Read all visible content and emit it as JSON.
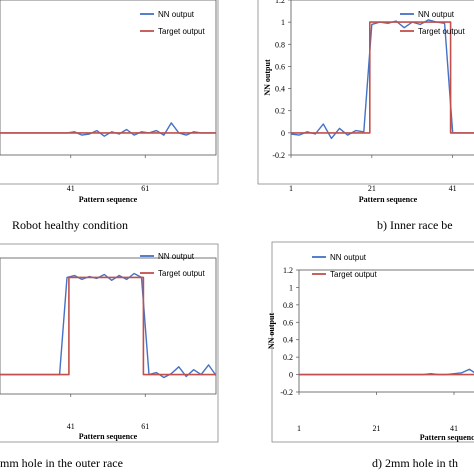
{
  "captions": [
    "Robot healthy condition",
    "b)     Inner race be",
    "mm hole in the outer race",
    "d)    2mm hole in th"
  ],
  "colors": {
    "nn": "#4472c4",
    "target": "#c0504d",
    "frame": "#888888"
  },
  "chart_data": [
    {
      "type": "line",
      "xlabel": "Pattern sequence",
      "ylabel": "",
      "legend": [
        "NN output",
        "Target output"
      ],
      "legend_position": "top-right",
      "xticks": [
        41,
        61
      ],
      "yticks": [],
      "xlim": [
        22,
        80
      ],
      "ylim": [
        -0.2,
        1.2
      ],
      "series": [
        {
          "name": "NN output",
          "x": [
            22,
            24,
            26,
            28,
            30,
            32,
            34,
            36,
            38,
            40,
            42,
            44,
            46,
            48,
            50,
            52,
            54,
            56,
            58,
            60,
            62,
            64,
            66,
            68,
            70,
            72,
            74,
            76,
            78,
            80
          ],
          "y": [
            0,
            0,
            0,
            0,
            0,
            0,
            0,
            0,
            0,
            0,
            0.01,
            -0.02,
            -0.01,
            0.02,
            -0.03,
            0.01,
            -0.01,
            0.03,
            -0.02,
            0.01,
            0,
            0.02,
            -0.02,
            0.09,
            0,
            -0.02,
            0.01,
            0,
            0,
            0
          ]
        },
        {
          "name": "Target output",
          "x": [
            22,
            80
          ],
          "y": [
            0,
            0
          ]
        }
      ]
    },
    {
      "type": "line",
      "xlabel": "Pattern sequence",
      "ylabel": "NN output",
      "legend": [
        "NN output",
        "Target output"
      ],
      "legend_position": "top-right",
      "xticks": [
        1,
        21,
        41
      ],
      "yticks": [
        -0.2,
        0,
        0.2,
        0.4,
        0.6,
        0.8,
        1,
        1.2
      ],
      "xlim": [
        1,
        49
      ],
      "ylim": [
        -0.2,
        1.2
      ],
      "series": [
        {
          "name": "NN output",
          "x": [
            1,
            3,
            5,
            7,
            9,
            11,
            13,
            15,
            17,
            19,
            21,
            23,
            25,
            27,
            29,
            31,
            33,
            35,
            37,
            39,
            41,
            43,
            45,
            47,
            49
          ],
          "y": [
            -0.01,
            -0.02,
            0.01,
            -0.01,
            0.08,
            -0.05,
            0.04,
            -0.02,
            0.02,
            0.01,
            0.98,
            1,
            0.99,
            1.01,
            0.95,
            1,
            0.98,
            1.02,
            1,
            0.99,
            0,
            0,
            0,
            0,
            0
          ]
        },
        {
          "name": "Target output",
          "x": [
            1,
            20.5,
            20.5,
            40.5,
            40.5,
            49
          ],
          "y": [
            0,
            0,
            1,
            1,
            0,
            0
          ]
        }
      ]
    },
    {
      "type": "line",
      "xlabel": "Pattern sequence",
      "ylabel": "",
      "legend": [
        "NN output",
        "Target output"
      ],
      "legend_position": "top-right",
      "xticks": [
        41,
        61
      ],
      "yticks": [],
      "xlim": [
        22,
        80
      ],
      "ylim": [
        -0.2,
        1.2
      ],
      "series": [
        {
          "name": "NN output",
          "x": [
            22,
            24,
            26,
            28,
            30,
            32,
            34,
            36,
            38,
            40,
            42,
            44,
            46,
            48,
            50,
            52,
            54,
            56,
            58,
            60,
            62,
            64,
            66,
            68,
            70,
            72,
            74,
            76,
            78,
            80
          ],
          "y": [
            0,
            0,
            0,
            0,
            0,
            0,
            0,
            0,
            0,
            1,
            1.02,
            0.98,
            1.01,
            0.99,
            1.03,
            0.97,
            1.02,
            0.98,
            1.04,
            1,
            0,
            0.02,
            -0.03,
            0.01,
            0.08,
            -0.02,
            0.05,
            0,
            0.1,
            -0.01
          ]
        },
        {
          "name": "Target output",
          "x": [
            22,
            40.5,
            40.5,
            60.5,
            60.5,
            80
          ],
          "y": [
            0,
            0,
            1,
            1,
            0,
            0
          ]
        }
      ]
    },
    {
      "type": "line",
      "xlabel": "Pattern sequence",
      "ylabel": "NN output",
      "legend": [
        "NN output",
        "Target output"
      ],
      "legend_position": "top-right",
      "xticks": [
        1,
        21,
        41
      ],
      "yticks": [
        -0.2,
        0,
        0.2,
        0.4,
        0.6,
        0.8,
        1,
        1.2
      ],
      "xlim": [
        1,
        49
      ],
      "ylim": [
        -0.2,
        1.2
      ],
      "series": [
        {
          "name": "NN output",
          "x": [
            1,
            3,
            5,
            7,
            9,
            11,
            13,
            15,
            17,
            19,
            21,
            23,
            25,
            27,
            29,
            31,
            33,
            35,
            37,
            39,
            41,
            43,
            45,
            47,
            49
          ],
          "y": [
            0,
            0,
            0,
            0,
            0,
            0,
            0,
            0,
            0,
            0,
            0,
            0,
            0,
            0,
            0,
            0,
            0,
            0.01,
            0,
            0,
            0.01,
            0.02,
            0.06,
            0,
            0
          ]
        },
        {
          "name": "Target output",
          "x": [
            1,
            49
          ],
          "y": [
            0,
            0
          ]
        }
      ]
    }
  ]
}
